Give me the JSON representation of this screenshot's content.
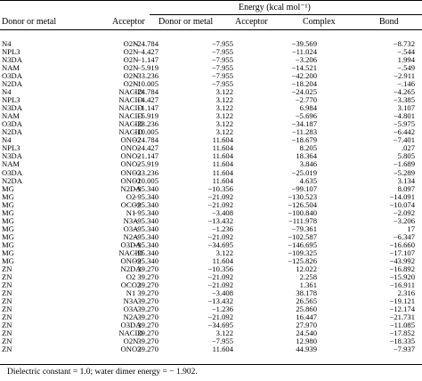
{
  "header": {
    "group": "Energy (kcal mol⁻¹)",
    "columns": [
      "Donor or metal",
      "Acceptor",
      "Donor or metal",
      "Acceptor",
      "Complex",
      "Bond"
    ]
  },
  "rows": [
    [
      "N4",
      "O2N",
      "−24.784",
      "−7.955",
      "−39.569",
      "−8.732"
    ],
    [
      "NPL3",
      "O2N",
      "−4.427",
      "−7.955",
      "−11.024",
      "−.544"
    ],
    [
      "N3DA",
      "O2N",
      "−1.147",
      "−7.955",
      "−3.206",
      "1.994"
    ],
    [
      "NAM",
      "O2N",
      "−5.919",
      "−7.955",
      "−14.521",
      "−.549"
    ],
    [
      "O3DA",
      "O2N",
      "−33.236",
      "−7.955",
      "−42.200",
      "−2.911"
    ],
    [
      "N2DA",
      "O2N",
      "−10.005",
      "−7.955",
      "−18.204",
      "−.146"
    ],
    [
      "N4",
      "NACID",
      "−24.784",
      "3.122",
      "−24.025",
      "−4.265"
    ],
    [
      "NPL3",
      "NACID",
      "−4.427",
      "3.122",
      "−2.770",
      "−3.385"
    ],
    [
      "N3DA",
      "NACID",
      "−1.147",
      "3.122",
      "6.984",
      "3.107"
    ],
    [
      "NAM",
      "NACID",
      "−5.919",
      "3.122",
      "−5.696",
      "−4.801"
    ],
    [
      "O3DA",
      "NACID",
      "−33.236",
      "3.122",
      "−34.187",
      "−5.975"
    ],
    [
      "N2DA",
      "NACID",
      "−10.005",
      "3.122",
      "−11.283",
      "−6.442"
    ],
    [
      "N4",
      "ONO2",
      "−24.784",
      "11.604",
      "−18.679",
      "−7.401"
    ],
    [
      "NPL3",
      "ONO2",
      "−4.427",
      "11.604",
      "8.205",
      ".027"
    ],
    [
      "N3DA",
      "ONO2",
      "−1.147",
      "11.604",
      "18.364",
      "5.805"
    ],
    [
      "NAM",
      "ONO2",
      "−5.919",
      "11.604",
      "3.846",
      "−1.689"
    ],
    [
      "O3DA",
      "ONO2",
      "−33.236",
      "11.604",
      "−25.019",
      "−5.289"
    ],
    [
      "N2DA",
      "ONO2",
      "−10.005",
      "11.604",
      "4.635",
      "3.134"
    ],
    [
      "MG",
      "N2DA",
      "−95.340",
      "−10.356",
      "−99.107",
      "8.097"
    ],
    [
      "MG",
      "O2",
      "−95.340",
      "−21.092",
      "−130.523",
      "−14.091"
    ],
    [
      "MG",
      "OCO2",
      "−95.340",
      "−21.092",
      "−126.504",
      "−10.074"
    ],
    [
      "MG",
      "N1",
      "−95.340",
      "−3.408",
      "−100.840",
      "−2.092"
    ],
    [
      "MG",
      "N3A",
      "−95.340",
      "−13.432",
      "−111.978",
      "−3.206"
    ],
    [
      "MG",
      "O3A",
      "−95.340",
      "−1.236",
      "−79.361",
      "17"
    ],
    [
      "MG",
      "N2A",
      "−95.340",
      "−21.092",
      "−102.587",
      "−6.347"
    ],
    [
      "MG",
      "O3DA",
      "−95.340",
      "−34.695",
      "−146.695",
      "−16.660"
    ],
    [
      "MG",
      "NACID",
      "−95.340",
      "3.122",
      "−109.325",
      "−17.107"
    ],
    [
      "MG",
      "ONO2",
      "−95.340",
      "11.604",
      "−125.826",
      "−43.992"
    ],
    [
      "ZN",
      "N2DA",
      "39.270",
      "−10.356",
      "12.022",
      "−16.892"
    ],
    [
      "ZN",
      "O2",
      "39.270",
      "−21.092",
      "2.258",
      "−15.920"
    ],
    [
      "ZN",
      "OCO2",
      "39.270",
      "−21.092",
      "1.361",
      "−16.911"
    ],
    [
      "ZN",
      "N1",
      "39.270",
      "−3.408",
      "38.178",
      "2.316"
    ],
    [
      "ZN",
      "N3A",
      "39.270",
      "−13.432",
      "26.565",
      "−19.121"
    ],
    [
      "ZN",
      "O3A",
      "39.270",
      "−1.236",
      "25.860",
      "−12.174"
    ],
    [
      "ZN",
      "N2A",
      "39.270",
      "−21.092",
      "16.447",
      "−21.731"
    ],
    [
      "ZN",
      "O3DA",
      "39.270",
      "−34.695",
      "27.970",
      "−11.085"
    ],
    [
      "ZN",
      "NACID",
      "39.270",
      "3.122",
      "24.540",
      "−17.852"
    ],
    [
      "ZN",
      "O2N",
      "39.270",
      "−7.955",
      "12.980",
      "−18.335"
    ],
    [
      "ZN",
      "ONO2",
      "39.270",
      "11.604",
      "44.939",
      "−7.937"
    ]
  ],
  "footnote": "Dielectric constant = 1.0; water dimer energy = − 1.902."
}
